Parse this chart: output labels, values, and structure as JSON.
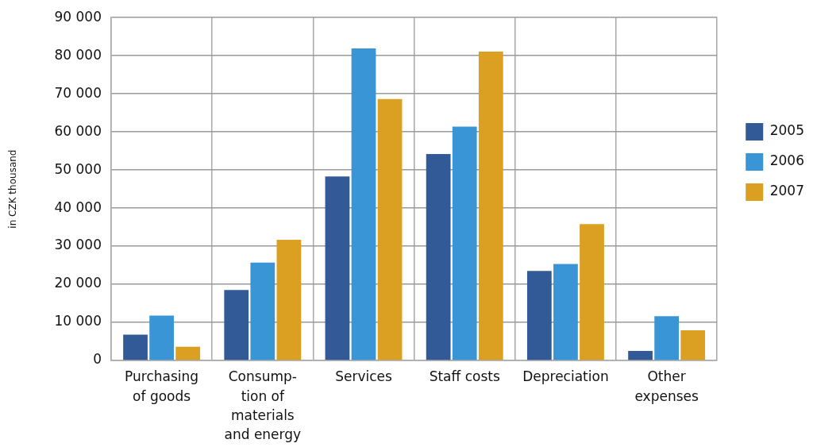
{
  "chart_data": {
    "type": "bar",
    "ylabel": "in CZK thousand",
    "categories": [
      "Purchasing\nof goods",
      "Consump-\ntion of\nmaterials\nand energy",
      "Services",
      "Staff costs",
      "Depreciation",
      "Other\nexpenses"
    ],
    "series": [
      {
        "name": "2005",
        "color": "#325a96",
        "values": [
          6800,
          18500,
          48300,
          54200,
          23500,
          2500
        ]
      },
      {
        "name": "2006",
        "color": "#3a95d6",
        "values": [
          11800,
          25700,
          81900,
          61400,
          25300,
          11600
        ]
      },
      {
        "name": "2007",
        "color": "#dba021",
        "values": [
          3600,
          31700,
          68600,
          81100,
          35800,
          7900
        ]
      }
    ],
    "ylim": [
      0,
      90000
    ],
    "yticks": [
      {
        "value": 0,
        "label": "0"
      },
      {
        "value": 10000,
        "label": "10 000"
      },
      {
        "value": 20000,
        "label": "20 000"
      },
      {
        "value": 30000,
        "label": "30 000"
      },
      {
        "value": 40000,
        "label": "40 000"
      },
      {
        "value": 50000,
        "label": "50 000"
      },
      {
        "value": 60000,
        "label": "60 000"
      },
      {
        "value": 70000,
        "label": "70 000"
      },
      {
        "value": 80000,
        "label": "80 000"
      },
      {
        "value": 90000,
        "label": "90 000"
      }
    ],
    "grid": true,
    "legend": "right"
  }
}
